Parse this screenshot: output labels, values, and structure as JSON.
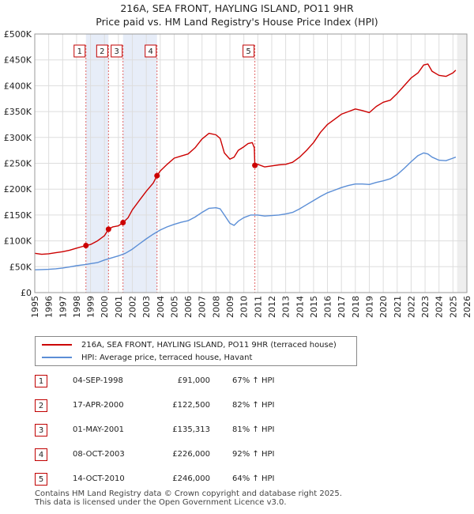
{
  "chart_data": {
    "type": "line",
    "title": "216A, SEA FRONT, HAYLING ISLAND, PO11 9HR",
    "subtitle": "Price paid vs. HM Land Registry's House Price Index (HPI)",
    "xlabel": "",
    "ylabel": "",
    "xlim": [
      1995,
      2026
    ],
    "ylim": [
      0,
      500000
    ],
    "grid": true,
    "y_ticks": [
      0,
      50000,
      100000,
      150000,
      200000,
      250000,
      300000,
      350000,
      400000,
      450000,
      500000
    ],
    "y_tick_labels": [
      "£0",
      "£50K",
      "£100K",
      "£150K",
      "£200K",
      "£250K",
      "£300K",
      "£350K",
      "£400K",
      "£450K",
      "£500K"
    ],
    "x_ticks": [
      1995,
      1996,
      1997,
      1998,
      1999,
      2000,
      2001,
      2002,
      2003,
      2004,
      2005,
      2006,
      2007,
      2008,
      2009,
      2010,
      2011,
      2012,
      2013,
      2014,
      2015,
      2016,
      2017,
      2018,
      2019,
      2020,
      2021,
      2022,
      2023,
      2024,
      2025,
      2026
    ],
    "x_tick_labels": [
      "1995",
      "1996",
      "1997",
      "1998",
      "1999",
      "2000",
      "2001",
      "2002",
      "2003",
      "2004",
      "2005",
      "2006",
      "2007",
      "2008",
      "2009",
      "2010",
      "2011",
      "2012",
      "2013",
      "2014",
      "2015",
      "2016",
      "2017",
      "2018",
      "2019",
      "2020",
      "2021",
      "2022",
      "2023",
      "2024",
      "2025",
      "2026"
    ],
    "series": [
      {
        "name": "216A, SEA FRONT, HAYLING ISLAND, PO11 9HR (terraced house)",
        "color": "#cc0000",
        "x": [
          1995.0,
          1995.5,
          1996.0,
          1996.5,
          1997.0,
          1997.5,
          1998.0,
          1998.67,
          1999.0,
          1999.5,
          2000.0,
          2000.29,
          2000.6,
          2001.0,
          2001.33,
          2001.7,
          2002.0,
          2002.5,
          2003.0,
          2003.5,
          2003.77,
          2004.0,
          2004.5,
          2005.0,
          2005.5,
          2006.0,
          2006.5,
          2007.0,
          2007.5,
          2008.0,
          2008.3,
          2008.6,
          2009.0,
          2009.3,
          2009.6,
          2010.0,
          2010.3,
          2010.6,
          2010.75,
          2010.79,
          2011.0,
          2011.5,
          2012.0,
          2012.5,
          2013.0,
          2013.5,
          2014.0,
          2014.5,
          2015.0,
          2015.5,
          2016.0,
          2016.5,
          2017.0,
          2017.5,
          2018.0,
          2018.5,
          2019.0,
          2019.5,
          2020.0,
          2020.5,
          2021.0,
          2021.5,
          2022.0,
          2022.5,
          2022.9,
          2023.2,
          2023.5,
          2024.0,
          2024.5,
          2025.0,
          2025.2
        ],
        "y": [
          76000,
          74000,
          75000,
          77000,
          79000,
          82000,
          86000,
          91000,
          93000,
          100000,
          110000,
          122500,
          127000,
          129000,
          135313,
          145000,
          160000,
          178000,
          196000,
          212000,
          226000,
          235000,
          248000,
          260000,
          264000,
          268000,
          280000,
          297000,
          308000,
          305000,
          298000,
          270000,
          258000,
          262000,
          275000,
          282000,
          288000,
          290000,
          280000,
          246000,
          248000,
          243000,
          245000,
          247000,
          248000,
          252000,
          262000,
          275000,
          290000,
          310000,
          325000,
          335000,
          345000,
          350000,
          355000,
          352000,
          348000,
          360000,
          368000,
          372000,
          385000,
          400000,
          415000,
          425000,
          440000,
          442000,
          428000,
          420000,
          418000,
          425000,
          430000
        ]
      },
      {
        "name": "HPI: Average price, terraced house, Havant",
        "color": "#5b8ed6",
        "x": [
          1995.0,
          1995.5,
          1996.0,
          1996.5,
          1997.0,
          1997.5,
          1998.0,
          1998.67,
          1999.0,
          1999.5,
          2000.0,
          2000.5,
          2001.0,
          2001.5,
          2002.0,
          2002.5,
          2003.0,
          2003.5,
          2004.0,
          2004.5,
          2005.0,
          2005.5,
          2006.0,
          2006.5,
          2007.0,
          2007.5,
          2008.0,
          2008.3,
          2008.6,
          2009.0,
          2009.3,
          2009.6,
          2010.0,
          2010.5,
          2011.0,
          2011.5,
          2012.0,
          2012.5,
          2013.0,
          2013.5,
          2014.0,
          2014.5,
          2015.0,
          2015.5,
          2016.0,
          2016.5,
          2017.0,
          2017.5,
          2018.0,
          2018.5,
          2019.0,
          2019.5,
          2020.0,
          2020.5,
          2021.0,
          2021.5,
          2022.0,
          2022.5,
          2022.9,
          2023.2,
          2023.5,
          2024.0,
          2024.5,
          2025.0,
          2025.2
        ],
        "y": [
          44000,
          44500,
          45000,
          46000,
          47500,
          49500,
          52000,
          54500,
          56000,
          58000,
          63000,
          67000,
          71000,
          76000,
          84000,
          94000,
          104000,
          113000,
          121000,
          127000,
          132000,
          136000,
          139000,
          146000,
          155000,
          163000,
          164000,
          162000,
          150000,
          134000,
          130000,
          138000,
          145000,
          150000,
          150000,
          148000,
          149000,
          150000,
          152000,
          155000,
          162000,
          170000,
          178000,
          186000,
          193000,
          198000,
          203000,
          207000,
          210000,
          210000,
          209000,
          213000,
          216000,
          220000,
          228000,
          240000,
          253000,
          265000,
          270000,
          268000,
          262000,
          256000,
          255000,
          260000,
          262000
        ]
      }
    ],
    "transactions": [
      {
        "label": "1",
        "x": 1998.67,
        "price": 91000
      },
      {
        "label": "2",
        "x": 2000.29,
        "price": 122500
      },
      {
        "label": "3",
        "x": 2001.33,
        "price": 135313
      },
      {
        "label": "4",
        "x": 2003.77,
        "price": 226000
      },
      {
        "label": "5",
        "x": 2010.79,
        "price": 246000
      }
    ]
  },
  "legend": {
    "property_label": "216A, SEA FRONT, HAYLING ISLAND, PO11 9HR (terraced house)",
    "hpi_label": "HPI: Average price, terraced house, Havant"
  },
  "table": {
    "rows": [
      {
        "num": "1",
        "date": "04-SEP-1998",
        "price": "£91,000",
        "hpi": "67% ↑ HPI"
      },
      {
        "num": "2",
        "date": "17-APR-2000",
        "price": "£122,500",
        "hpi": "82% ↑ HPI"
      },
      {
        "num": "3",
        "date": "01-MAY-2001",
        "price": "£135,313",
        "hpi": "81% ↑ HPI"
      },
      {
        "num": "4",
        "date": "08-OCT-2003",
        "price": "£226,000",
        "hpi": "92% ↑ HPI"
      },
      {
        "num": "5",
        "date": "14-OCT-2010",
        "price": "£246,000",
        "hpi": "64% ↑ HPI"
      }
    ]
  },
  "footer": {
    "line1": "Contains HM Land Registry data © Crown copyright and database right 2025.",
    "line2": "This data is licensed under the Open Government Licence v3.0."
  }
}
